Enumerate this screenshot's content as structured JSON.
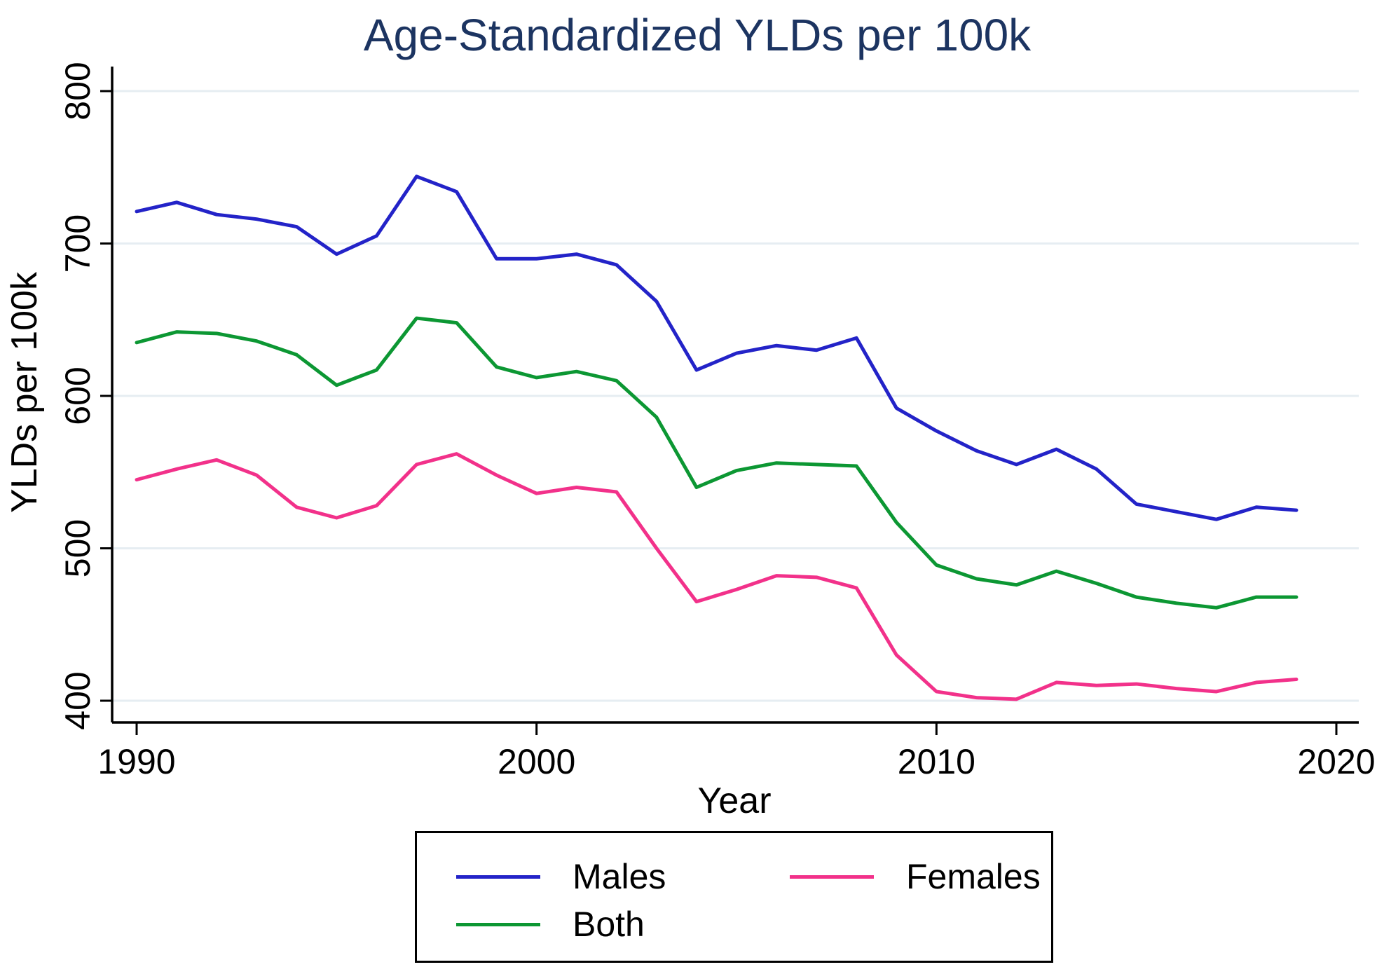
{
  "chart_data": {
    "type": "line",
    "title": "Age-Standardized YLDs per 100k",
    "xlabel": "Year",
    "ylabel": "YLDs per 100k",
    "x": [
      1990,
      1991,
      1992,
      1993,
      1994,
      1995,
      1996,
      1997,
      1998,
      1999,
      2000,
      2001,
      2002,
      2003,
      2004,
      2005,
      2006,
      2007,
      2008,
      2009,
      2010,
      2011,
      2012,
      2013,
      2014,
      2015,
      2016,
      2017,
      2018,
      2019
    ],
    "series": [
      {
        "name": "Males",
        "color": "#2323c8",
        "values": [
          721,
          727,
          719,
          716,
          711,
          693,
          705,
          744,
          734,
          690,
          690,
          693,
          686,
          662,
          617,
          628,
          633,
          630,
          638,
          592,
          577,
          564,
          555,
          565,
          552,
          529,
          524,
          519,
          527,
          525
        ]
      },
      {
        "name": "Females",
        "color": "#f2318a",
        "values": [
          545,
          552,
          558,
          548,
          527,
          520,
          528,
          555,
          562,
          548,
          536,
          540,
          537,
          500,
          465,
          473,
          482,
          481,
          474,
          430,
          406,
          402,
          401,
          412,
          410,
          411,
          408,
          406,
          412,
          414
        ]
      },
      {
        "name": "Both",
        "color": "#0c9733",
        "values": [
          635,
          642,
          641,
          636,
          627,
          607,
          617,
          651,
          648,
          619,
          612,
          616,
          610,
          586,
          540,
          551,
          556,
          555,
          554,
          517,
          489,
          480,
          476,
          485,
          477,
          468,
          464,
          461,
          468,
          468
        ]
      }
    ],
    "xlim": [
      1989.4,
      2020.6
    ],
    "ylim": [
      400,
      800
    ],
    "xticks": [
      1990,
      2000,
      2010,
      2020
    ],
    "yticks": [
      400,
      500,
      600,
      700,
      800
    ],
    "grid": "horizontal",
    "legend_position": "bottom-box",
    "legend_order": [
      "Males",
      "Females",
      "Both"
    ]
  },
  "colors": {
    "title": "#1c3461",
    "axis": "#000000",
    "tick_label": "#000000",
    "grid": "#e6edf2",
    "background": "#ffffff"
  }
}
